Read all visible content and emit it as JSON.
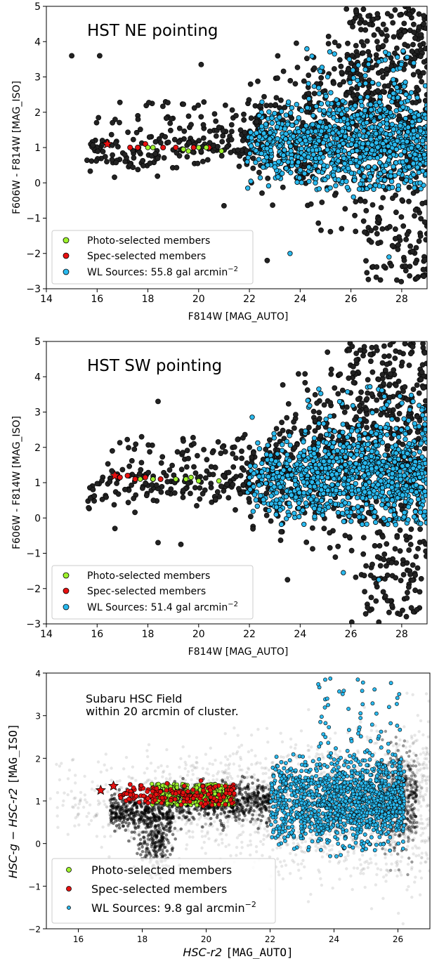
{
  "chart_data": [
    {
      "type": "scatter",
      "title": "HST NE pointing",
      "xlabel": "F814W [MAG_AUTO]",
      "ylabel": "F606W - F814W [MAG_ISO]",
      "xlim": [
        14,
        29
      ],
      "ylim": [
        -3,
        5
      ],
      "xticks": [
        "14",
        "16",
        "18",
        "20",
        "22",
        "24",
        "26",
        "28"
      ],
      "yticks": [
        "−3",
        "−2",
        "−1",
        "0",
        "1",
        "2",
        "3",
        "4",
        "5"
      ],
      "legend_position": "lower-left",
      "legend": [
        {
          "label": "Photo-selected members",
          "color": "#9ef32c"
        },
        {
          "label": "Spec-selected members",
          "color": "#e81010"
        },
        {
          "label_main": "WL Sources: 55.8 gal arcmin",
          "label_sup": "−2",
          "color": "#29b9ee"
        }
      ],
      "series_points": {
        "stars": [
          [
            16.4,
            1.1
          ]
        ],
        "photo": [
          [
            18.0,
            1.0
          ],
          [
            18.2,
            1.0
          ],
          [
            19.4,
            0.95
          ],
          [
            19.6,
            0.9
          ],
          [
            20.0,
            1.0
          ],
          [
            20.3,
            1.0
          ],
          [
            20.9,
            0.9
          ]
        ],
        "spec": [
          [
            17.3,
            1.0
          ],
          [
            17.6,
            1.0
          ],
          [
            17.9,
            1.1
          ],
          [
            18.6,
            1.0
          ],
          [
            19.1,
            1.0
          ],
          [
            19.8,
            1.0
          ],
          [
            20.4,
            1.0
          ]
        ],
        "outliers_field": [
          [
            15.0,
            3.6
          ],
          [
            16.1,
            3.6
          ],
          [
            20.1,
            3.35
          ],
          [
            21.0,
            -0.65
          ],
          [
            22.7,
            -2.2
          ],
          [
            26.8,
            -1.35
          ],
          [
            28.6,
            -2.7
          ],
          [
            28.1,
            -2.2
          ]
        ],
        "outliers_wl": [
          [
            23.6,
            -2.0
          ],
          [
            27.5,
            -2.1
          ],
          [
            26.1,
            -0.4
          ],
          [
            24.6,
            0.0
          ]
        ]
      }
    },
    {
      "type": "scatter",
      "title": "HST SW pointing",
      "xlabel": "F814W [MAG_AUTO]",
      "ylabel": "F606W - F814W [MAG_ISO]",
      "xlim": [
        14,
        29
      ],
      "ylim": [
        -3,
        5
      ],
      "xticks": [
        "14",
        "16",
        "18",
        "20",
        "22",
        "24",
        "26",
        "28"
      ],
      "yticks": [
        "−3",
        "−2",
        "−1",
        "0",
        "1",
        "2",
        "3",
        "4",
        "5"
      ],
      "legend_position": "lower-left",
      "legend": [
        {
          "label": "Photo-selected members",
          "color": "#9ef32c"
        },
        {
          "label": "Spec-selected members",
          "color": "#e81010"
        },
        {
          "label_main": "WL Sources: 51.4 gal arcmin",
          "label_sup": "−2",
          "color": "#29b9ee"
        }
      ],
      "series_points": {
        "stars": [
          [
            16.7,
            1.2
          ]
        ],
        "photo": [
          [
            17.7,
            1.1
          ],
          [
            18.2,
            1.1
          ],
          [
            19.1,
            1.1
          ],
          [
            19.5,
            1.1
          ],
          [
            19.7,
            1.15
          ],
          [
            20.0,
            1.05
          ],
          [
            20.8,
            1.05
          ]
        ],
        "spec": [
          [
            16.9,
            1.15
          ],
          [
            17.2,
            1.2
          ],
          [
            17.5,
            1.1
          ],
          [
            17.9,
            1.15
          ],
          [
            18.2,
            1.1
          ],
          [
            18.5,
            1.1
          ]
        ],
        "outliers_field": [
          [
            18.4,
            3.3
          ],
          [
            16.6,
            1.9
          ],
          [
            16.7,
            -0.3
          ],
          [
            18.4,
            -0.7
          ],
          [
            19.3,
            -0.75
          ],
          [
            23.5,
            -1.75
          ],
          [
            27.1,
            -2.95
          ],
          [
            28.6,
            -2.6
          ]
        ],
        "outliers_wl": [
          [
            25.7,
            -1.55
          ],
          [
            27.1,
            -1.75
          ]
        ]
      }
    },
    {
      "type": "scatter",
      "title": "Subaru HSC Field\nwithin 20 arcmin of cluster.",
      "title_lines": [
        "Subaru HSC Field",
        "within 20 arcmin of cluster."
      ],
      "xlabel_parts": [
        "HSC-r2 ",
        "[MAG_AUTO]"
      ],
      "ylabel_parts": [
        "HSC-g − HSC-r2 ",
        "[MAG_ISO]"
      ],
      "xlim": [
        15,
        27
      ],
      "ylim": [
        -2,
        4
      ],
      "xticks": [
        "16",
        "18",
        "20",
        "22",
        "24",
        "26"
      ],
      "yticks": [
        "−2",
        "−1",
        "0",
        "1",
        "2",
        "3",
        "4"
      ],
      "legend_position": "lower-left",
      "legend": [
        {
          "label": "Photo-selected members",
          "color": "#9ef32c"
        },
        {
          "label": "Spec-selected members",
          "color": "#e81010"
        },
        {
          "label_main": "WL Sources: 9.8 gal arcmin",
          "label_sup": "−2",
          "color": "#29b9ee"
        }
      ],
      "series_points": {
        "stars": [
          [
            16.7,
            1.25
          ],
          [
            17.1,
            1.35
          ]
        ],
        "photo_range": {
          "x": [
            18.3,
            20.9
          ],
          "y": [
            0.7,
            1.4
          ]
        },
        "spec_range": {
          "x": [
            17.3,
            20.9
          ],
          "y": [
            0.7,
            1.35
          ]
        },
        "wl_range": {
          "x": [
            22.0,
            26.2
          ],
          "y": [
            -0.3,
            2.1
          ]
        }
      }
    }
  ]
}
